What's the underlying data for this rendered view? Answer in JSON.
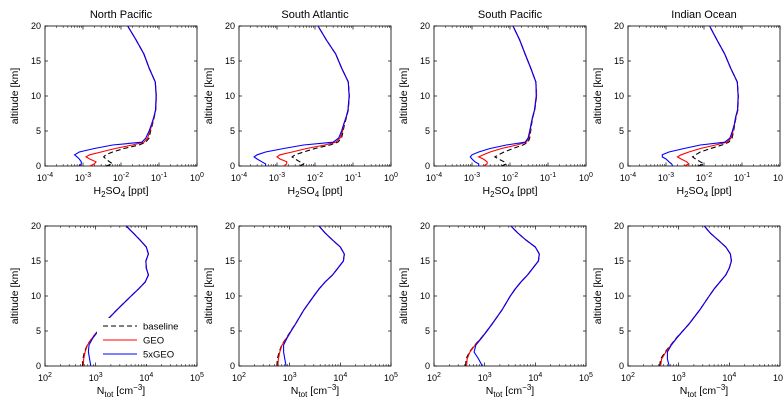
{
  "chart_data": {
    "type": "line",
    "titles": [
      "North Pacific",
      "South Atlantic",
      "South Pacific",
      "Indian Ocean"
    ],
    "ylabel": "altitude [km]",
    "ylim": [
      0,
      20
    ],
    "yticks": [
      "0",
      "5",
      "10",
      "15",
      "20"
    ],
    "legend": {
      "position": "bottom-right of first lower panel",
      "entries": [
        {
          "name": "baseline",
          "color": "#000000",
          "dash": "dashed"
        },
        {
          "name": "GEO",
          "color": "#ff0000",
          "dash": "solid"
        },
        {
          "name": "5xGEO",
          "color": "#0000ff",
          "dash": "solid"
        }
      ]
    },
    "rows": [
      {
        "xlabel": {
          "pre": "H",
          "s1": "2",
          "mid": "SO",
          "s2": "4",
          "post": " [ppt]"
        },
        "xscale": "log",
        "xlim_exp": [
          -4,
          0
        ],
        "xtick_exps": [
          "-4",
          "-3",
          "-2",
          "-1",
          "0"
        ],
        "panels": [
          {
            "altitude": [
              0,
              0.3,
              0.6,
              1.0,
              1.3,
              1.6,
              2.0,
              2.5,
              3.0,
              3.4,
              4.0,
              5,
              6,
              7,
              8,
              10,
              12,
              14,
              16,
              18,
              20
            ],
            "baseline": [
              0.004,
              0.006,
              0.005,
              0.004,
              0.0035,
              0.004,
              0.006,
              0.012,
              0.03,
              0.045,
              0.055,
              0.06,
              0.068,
              0.075,
              0.082,
              0.085,
              0.08,
              0.055,
              0.04,
              0.025,
              0.015
            ],
            "GEO": [
              0.0015,
              0.002,
              0.0022,
              0.0015,
              0.0012,
              0.0015,
              0.003,
              0.007,
              0.02,
              0.04,
              0.05,
              0.058,
              0.066,
              0.074,
              0.082,
              0.085,
              0.08,
              0.055,
              0.04,
              0.025,
              0.015
            ],
            "5xGEO": [
              0.0008,
              0.0009,
              0.0009,
              0.0008,
              0.0007,
              0.0006,
              0.0008,
              0.002,
              0.006,
              0.035,
              0.045,
              0.055,
              0.064,
              0.073,
              0.081,
              0.084,
              0.08,
              0.055,
              0.04,
              0.025,
              0.015
            ]
          },
          {
            "altitude": [
              0,
              0.3,
              0.6,
              1.0,
              1.3,
              1.6,
              2.0,
              2.5,
              3.0,
              3.4,
              4.0,
              5,
              6,
              7,
              8,
              10,
              12,
              14,
              16,
              18,
              20
            ],
            "baseline": [
              0.004,
              0.005,
              0.004,
              0.003,
              0.0025,
              0.003,
              0.005,
              0.01,
              0.025,
              0.04,
              0.05,
              0.055,
              0.06,
              0.068,
              0.075,
              0.08,
              0.075,
              0.05,
              0.035,
              0.02,
              0.012
            ],
            "GEO": [
              0.0015,
              0.0018,
              0.0018,
              0.0012,
              0.001,
              0.0012,
              0.0025,
              0.006,
              0.018,
              0.035,
              0.046,
              0.053,
              0.058,
              0.067,
              0.074,
              0.08,
              0.075,
              0.05,
              0.035,
              0.02,
              0.012
            ],
            "5xGEO": [
              0.0005,
              0.0005,
              0.0004,
              0.0003,
              0.00025,
              0.0003,
              0.0005,
              0.0015,
              0.005,
              0.03,
              0.042,
              0.05,
              0.057,
              0.066,
              0.074,
              0.079,
              0.075,
              0.05,
              0.035,
              0.02,
              0.012
            ]
          },
          {
            "altitude": [
              0,
              0.3,
              0.6,
              1.0,
              1.3,
              1.6,
              2.0,
              2.5,
              3.0,
              3.4,
              4.0,
              5,
              6,
              7,
              8,
              10,
              12,
              14,
              16,
              18,
              20
            ],
            "baseline": [
              0.006,
              0.008,
              0.007,
              0.005,
              0.004,
              0.005,
              0.007,
              0.012,
              0.022,
              0.03,
              0.033,
              0.035,
              0.037,
              0.04,
              0.045,
              0.05,
              0.048,
              0.035,
              0.025,
              0.018,
              0.012
            ],
            "GEO": [
              0.002,
              0.0025,
              0.0025,
              0.002,
              0.0015,
              0.002,
              0.003,
              0.006,
              0.015,
              0.027,
              0.031,
              0.034,
              0.036,
              0.04,
              0.044,
              0.05,
              0.048,
              0.035,
              0.025,
              0.018,
              0.012
            ],
            "5xGEO": [
              0.0015,
              0.0015,
              0.0012,
              0.001,
              0.0009,
              0.001,
              0.0015,
              0.003,
              0.008,
              0.025,
              0.03,
              0.033,
              0.036,
              0.039,
              0.044,
              0.049,
              0.048,
              0.035,
              0.025,
              0.018,
              0.012
            ]
          },
          {
            "altitude": [
              0,
              0.3,
              0.6,
              1.0,
              1.3,
              1.6,
              2.0,
              2.5,
              3.0,
              3.4,
              4.0,
              5,
              6,
              7,
              8,
              10,
              12,
              14,
              16,
              18,
              20
            ],
            "baseline": [
              0.007,
              0.01,
              0.008,
              0.006,
              0.005,
              0.006,
              0.008,
              0.015,
              0.03,
              0.045,
              0.055,
              0.06,
              0.065,
              0.07,
              0.078,
              0.08,
              0.075,
              0.05,
              0.035,
              0.022,
              0.014
            ],
            "GEO": [
              0.003,
              0.004,
              0.0035,
              0.0025,
              0.002,
              0.0025,
              0.004,
              0.008,
              0.02,
              0.04,
              0.052,
              0.058,
              0.064,
              0.069,
              0.077,
              0.08,
              0.075,
              0.05,
              0.035,
              0.022,
              0.014
            ],
            "5xGEO": [
              0.0015,
              0.0014,
              0.0012,
              0.001,
              0.0008,
              0.0008,
              0.0012,
              0.003,
              0.008,
              0.035,
              0.048,
              0.056,
              0.063,
              0.068,
              0.076,
              0.079,
              0.075,
              0.05,
              0.035,
              0.022,
              0.014
            ]
          }
        ]
      },
      {
        "xlabel": {
          "pre": "N",
          "s1": "tot",
          "mid": " [cm",
          "s2": "−3",
          "post": "]"
        },
        "xscale": "log",
        "xlim_exp": [
          2,
          5
        ],
        "xtick_exps": [
          "2",
          "3",
          "4",
          "5"
        ],
        "panels": [
          {
            "altitude": [
              0,
              1,
              2,
              3,
              4,
              5,
              6,
              8,
              10,
              11,
              12,
              13,
              14,
              15,
              16,
              17,
              18,
              19,
              20
            ],
            "baseline": [
              550,
              560,
              600,
              680,
              850,
              1100,
              1400,
              2600,
              5000,
              7000,
              9500,
              11000,
              10000,
              9800,
              11000,
              10000,
              7500,
              5500,
              4000
            ],
            "GEO": [
              570,
              580,
              620,
              690,
              860,
              1100,
              1400,
              2600,
              5000,
              7000,
              9500,
              11000,
              10000,
              9800,
              11000,
              10000,
              7500,
              5500,
              4000
            ],
            "5xGEO": [
              800,
              760,
              720,
              740,
              880,
              1120,
              1420,
              2620,
              5000,
              7000,
              9500,
              11000,
              10000,
              9800,
              11000,
              10000,
              7500,
              5500,
              4000
            ]
          },
          {
            "altitude": [
              0,
              1,
              2,
              3,
              4,
              5,
              6,
              8,
              10,
              11,
              12,
              13,
              14,
              15,
              16,
              17,
              18,
              19,
              20
            ],
            "baseline": [
              560,
              570,
              620,
              700,
              860,
              1050,
              1300,
              1900,
              3000,
              3800,
              5000,
              7000,
              9000,
              11500,
              12000,
              10000,
              7000,
              5000,
              3800
            ],
            "GEO": [
              580,
              600,
              640,
              710,
              870,
              1060,
              1300,
              1900,
              3000,
              3800,
              5000,
              7000,
              9000,
              11500,
              12000,
              10000,
              7000,
              5000,
              3800
            ],
            "5xGEO": [
              850,
              800,
              760,
              760,
              890,
              1070,
              1310,
              1900,
              3000,
              3800,
              5000,
              7000,
              9000,
              11500,
              12000,
              10000,
              7000,
              5000,
              3800
            ]
          },
          {
            "altitude": [
              0,
              1,
              2,
              3,
              4,
              5,
              6,
              8,
              10,
              11,
              12,
              13,
              14,
              15,
              16,
              17,
              18,
              19,
              20
            ],
            "baseline": [
              420,
              430,
              500,
              640,
              850,
              1100,
              1400,
              2200,
              3200,
              4000,
              5200,
              7000,
              9000,
              11500,
              12000,
              10000,
              6500,
              4500,
              3300
            ],
            "GEO": [
              440,
              450,
              510,
              650,
              860,
              1100,
              1400,
              2200,
              3200,
              4000,
              5200,
              7000,
              9000,
              11500,
              12000,
              10000,
              6500,
              4500,
              3300
            ],
            "5xGEO": [
              900,
              760,
              620,
              670,
              870,
              1110,
              1400,
              2200,
              3200,
              4000,
              5200,
              7000,
              9000,
              11500,
              12000,
              10000,
              6500,
              4500,
              3300
            ]
          },
          {
            "altitude": [
              0,
              1,
              2,
              3,
              4,
              5,
              6,
              8,
              10,
              11,
              12,
              13,
              14,
              15,
              16,
              17,
              18,
              19,
              20
            ],
            "baseline": [
              420,
              440,
              540,
              700,
              900,
              1200,
              1600,
              2600,
              4000,
              5000,
              6500,
              8500,
              10000,
              11000,
              10500,
              8500,
              6000,
              4200,
              3200
            ],
            "GEO": [
              440,
              460,
              560,
              710,
              910,
              1200,
              1600,
              2600,
              4000,
              5000,
              6500,
              8500,
              10000,
              11000,
              10500,
              8500,
              6000,
              4200,
              3200
            ],
            "5xGEO": [
              650,
              600,
              600,
              720,
              920,
              1210,
              1600,
              2600,
              4000,
              5000,
              6500,
              8500,
              10000,
              11000,
              10500,
              8500,
              6000,
              4200,
              3200
            ]
          }
        ]
      }
    ]
  }
}
